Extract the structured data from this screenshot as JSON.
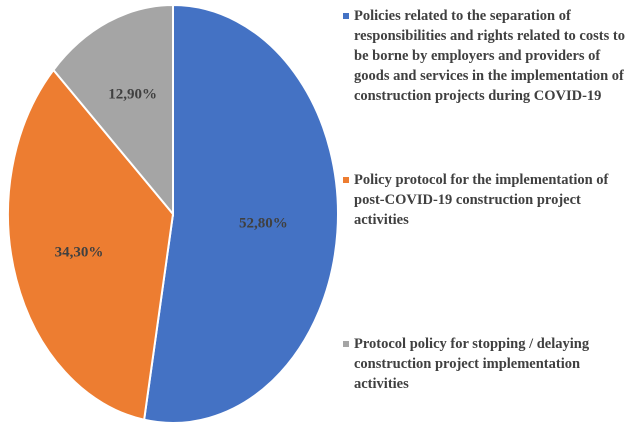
{
  "chart_data": {
    "type": "pie",
    "series": [
      {
        "name": "Policies related to the separation of responsibilities and rights related to costs to be borne by employers and providers of goods and services in the implementation of construction projects during COVID-19",
        "color": "#4472c4"
      },
      {
        "name": "Policy protocol for the implementation of post-COVID-19 construction project activities",
        "color": "#ed7d31"
      },
      {
        "name": "Protocol policy for stopping / delaying construction project implementation activities",
        "color": "#a5a5a5"
      }
    ],
    "values": [
      52.8,
      34.3,
      12.9
    ],
    "value_labels": [
      "52,80%",
      "34,30%",
      "12,90%"
    ]
  }
}
